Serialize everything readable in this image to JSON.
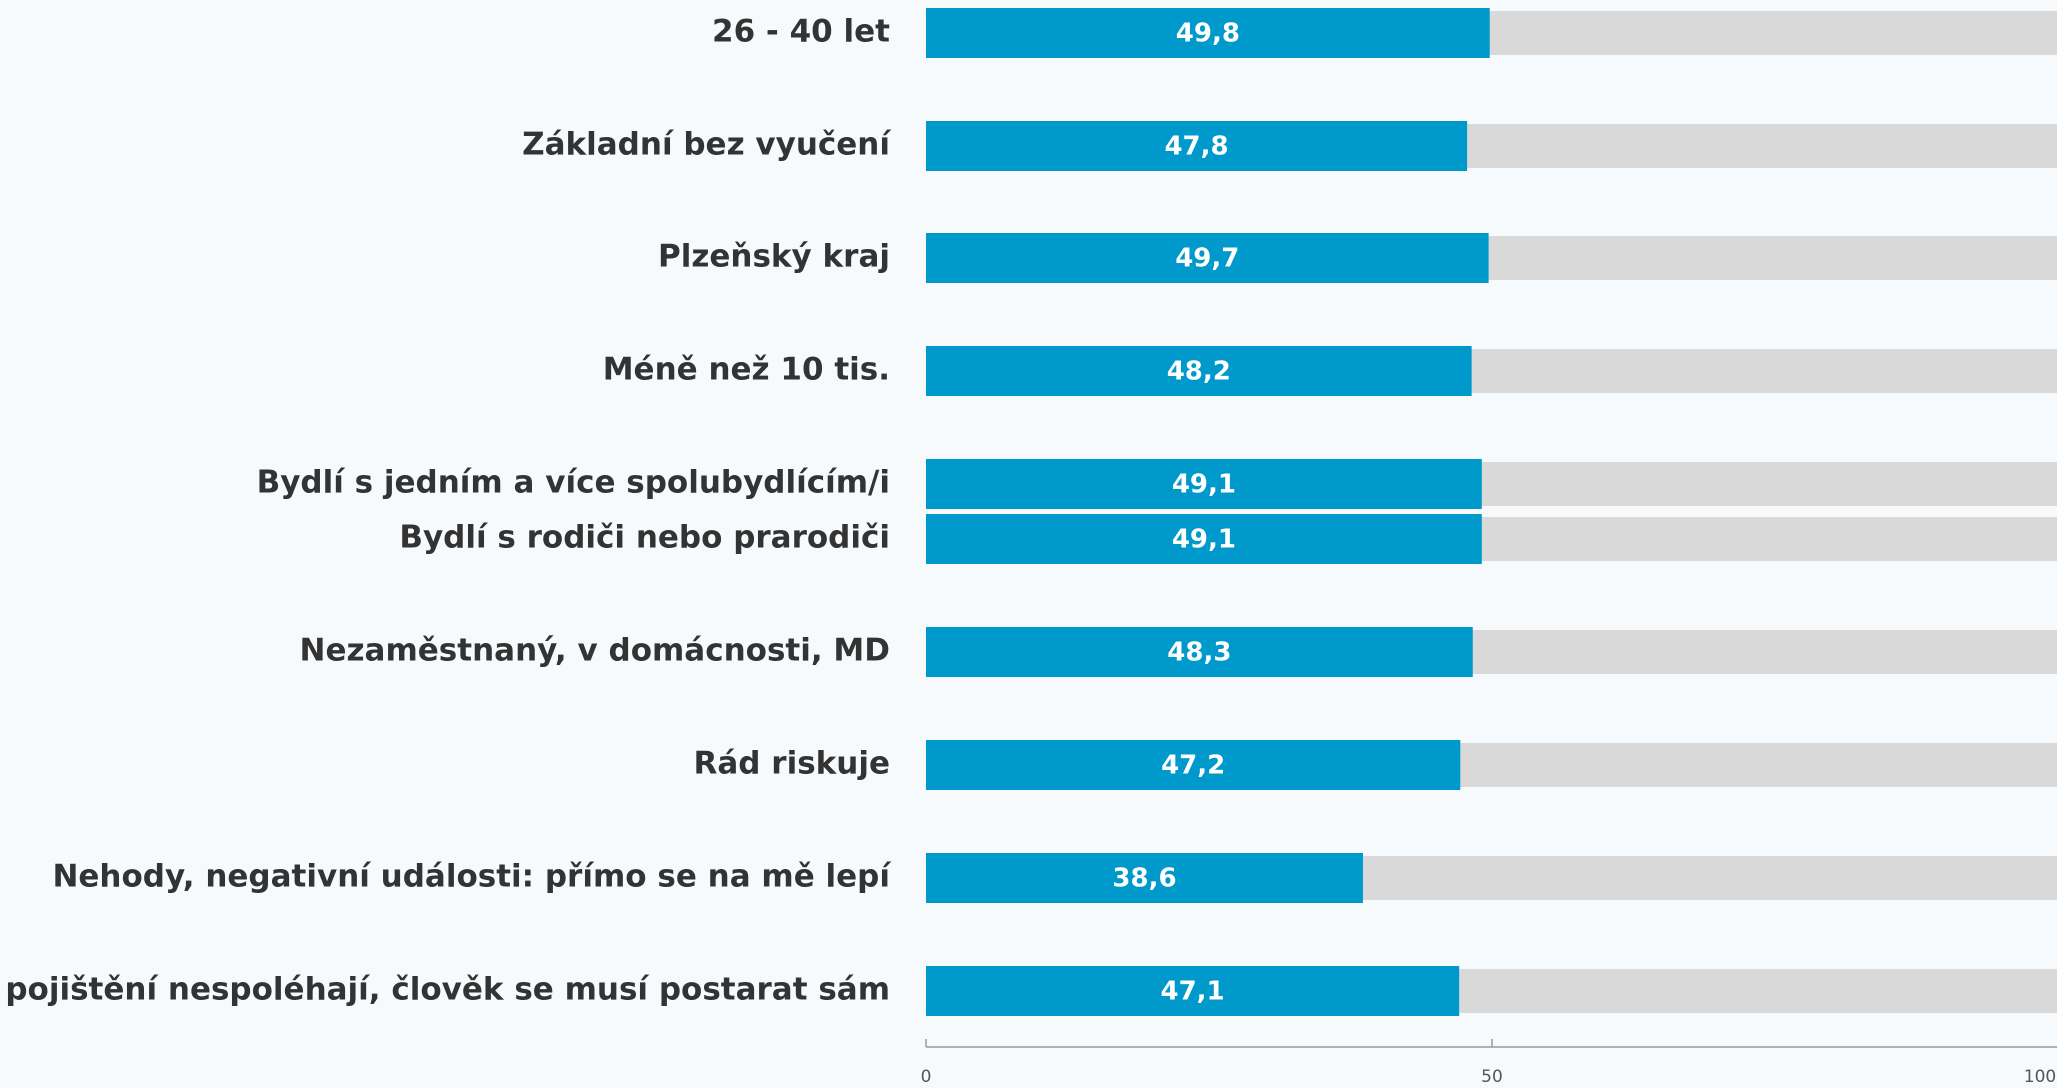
{
  "chart_data": {
    "type": "bar",
    "orientation": "horizontal",
    "categories": [
      "26 - 40 let",
      "Základní bez vyučení",
      "Plzeňský kraj",
      "Méně než 10 tis.",
      "Bydlí s jedním a více spolubydlícím/i",
      "Bydlí s rodiči nebo prarodiči",
      "Nezaměstnaný, v domácnosti, MD",
      "Rád riskuje",
      "Nehody, negativní události: přímo se na mě lepí",
      "Na pojištění nespoléhají, člověk se musí postarat sám"
    ],
    "values": [
      49.8,
      47.8,
      49.7,
      48.2,
      49.1,
      49.1,
      48.3,
      47.2,
      38.6,
      47.1
    ],
    "value_labels": [
      "49,8",
      "47,8",
      "49,7",
      "48,2",
      "49,1",
      "49,1",
      "48,3",
      "47,2",
      "38,6",
      "47,1"
    ],
    "color": "#0099cc",
    "track_color": "#d9d9d9",
    "xlim": [
      0,
      100
    ],
    "xticks": [
      0,
      50,
      100
    ]
  }
}
